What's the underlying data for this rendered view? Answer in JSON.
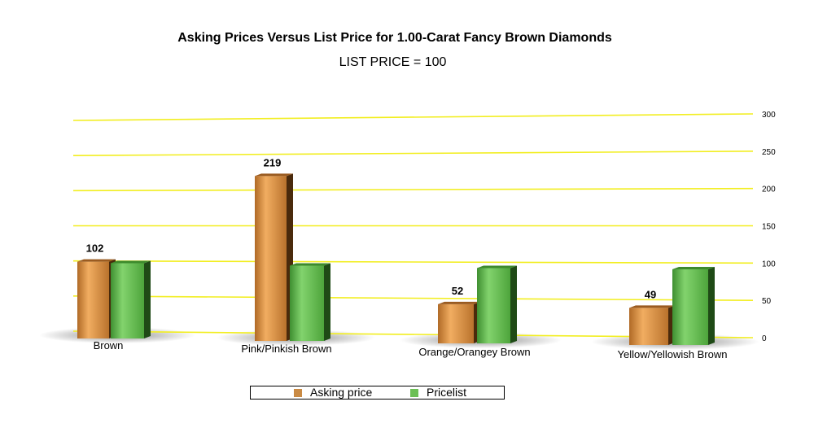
{
  "chart_data": {
    "type": "bar",
    "title": "Asking Prices Versus List Price for 1.00-Carat Fancy Brown Diamonds",
    "subtitle": "LIST PRICE = 100",
    "categories": [
      "Brown",
      "Pink/Pinkish Brown",
      "Orange/Orangey Brown",
      "Yellow/Yellowish Brown"
    ],
    "series": [
      {
        "name": "Asking price",
        "values": [
          102,
          219,
          52,
          49
        ],
        "color": "#d89348"
      },
      {
        "name": "Pricelist",
        "values": [
          100,
          100,
          100,
          100
        ],
        "color": "#66bb55"
      }
    ],
    "data_labels": [
      "102",
      "219",
      "52",
      "49"
    ],
    "ylim": [
      0,
      300
    ],
    "yticks": [
      "0",
      "50",
      "100",
      "150",
      "200",
      "250",
      "300"
    ],
    "grid": true,
    "grid_color": "#f2ee20",
    "y_axis_side": "right",
    "legend_position": "bottom"
  }
}
